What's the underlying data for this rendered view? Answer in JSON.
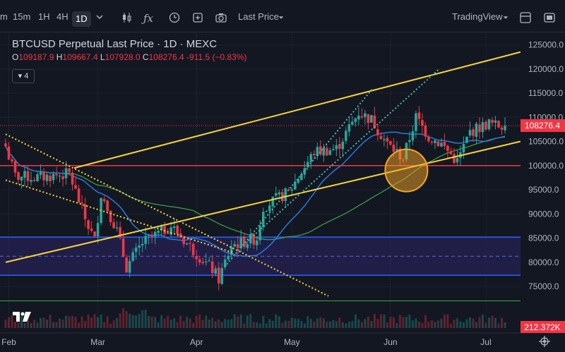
{
  "toolbar": {
    "intervals": [
      "m",
      "15m",
      "1H",
      "4H",
      "1D"
    ],
    "active_interval": "1D",
    "price_type": "Last Price",
    "brand": "TradingView",
    "icons": [
      "chevron-down-icon",
      "candles-icon",
      "fx-icon",
      "alert-icon",
      "replay-icon",
      "layout-icon",
      "camera-icon",
      "fullscreen-icon"
    ]
  },
  "legend": {
    "title": "BTCUSD Perpetual Last Price · 1D · MEXC",
    "o_label": "O",
    "o": "109187.9",
    "h_label": "H",
    "h": "109667.4",
    "l_label": "L",
    "l": "107928.0",
    "c_label": "C",
    "c": "108276.4",
    "change": "-911.5 (−0.83%)",
    "indicators_count": "4"
  },
  "colors": {
    "background": "#131722",
    "up": "#26a69a",
    "down": "#f23645",
    "trendline": "#f5d33b",
    "sma_fast": "#2d7fe3",
    "sma_slow": "#3fa34d",
    "support": "#f23645",
    "zone": "#2b2466"
  },
  "chart_data": {
    "type": "candlestick",
    "title": "BTCUSD Perpetual Last Price · 1D · MEXC",
    "xlabels": [
      "Feb",
      "Mar",
      "Apr",
      "May",
      "Jun",
      "Jul"
    ],
    "ylabels": [
      "125000.0",
      "120000.0",
      "115000.0",
      "110000.0",
      "105000.0",
      "100000.0",
      "95000.0",
      "90000.0",
      "85000.0",
      "80000.0",
      "75000.0"
    ],
    "ylim": [
      71800,
      126800
    ],
    "x_range": [
      "2025-01-31",
      "2025-07-07"
    ],
    "last_price_label": "108276.4",
    "last_price": 108276.4,
    "volume_label": "212.372K",
    "key_points": [
      {
        "date": "2025-01-31",
        "close": 104000
      },
      {
        "date": "2025-02-03",
        "close": 97800
      },
      {
        "date": "2025-02-10",
        "close": 97500
      },
      {
        "date": "2025-02-20",
        "close": 98300
      },
      {
        "date": "2025-02-25",
        "close": 89000
      },
      {
        "date": "2025-02-28",
        "close": 84500
      },
      {
        "date": "2025-03-02",
        "close": 94200
      },
      {
        "date": "2025-03-07",
        "close": 86500
      },
      {
        "date": "2025-03-10",
        "close": 79000
      },
      {
        "date": "2025-03-15",
        "close": 84000
      },
      {
        "date": "2025-03-24",
        "close": 87500
      },
      {
        "date": "2025-03-31",
        "close": 82500
      },
      {
        "date": "2025-04-06",
        "close": 78500
      },
      {
        "date": "2025-04-08",
        "close": 76500
      },
      {
        "date": "2025-04-12",
        "close": 83500
      },
      {
        "date": "2025-04-20",
        "close": 85000
      },
      {
        "date": "2025-04-22",
        "close": 91500
      },
      {
        "date": "2025-04-30",
        "close": 94500
      },
      {
        "date": "2025-05-08",
        "close": 102800
      },
      {
        "date": "2025-05-15",
        "close": 103500
      },
      {
        "date": "2025-05-22",
        "close": 111000
      },
      {
        "date": "2025-05-26",
        "close": 109500
      },
      {
        "date": "2025-05-31",
        "close": 104500
      },
      {
        "date": "2025-06-05",
        "close": 101500
      },
      {
        "date": "2025-06-09",
        "close": 110000
      },
      {
        "date": "2025-06-13",
        "close": 106000
      },
      {
        "date": "2025-06-17",
        "close": 104500
      },
      {
        "date": "2025-06-22",
        "close": 100800
      },
      {
        "date": "2025-06-26",
        "close": 107000
      },
      {
        "date": "2025-07-02",
        "close": 108800
      },
      {
        "date": "2025-07-04",
        "close": 108300
      },
      {
        "date": "2025-07-06",
        "close": 108276.4
      }
    ],
    "support_level": 100000,
    "horizontal_zone": [
      77300,
      85200
    ],
    "bottom_line": 72000,
    "annotations": {
      "highlight_circle": {
        "date": "2025-06-06",
        "price": 99000
      }
    }
  }
}
